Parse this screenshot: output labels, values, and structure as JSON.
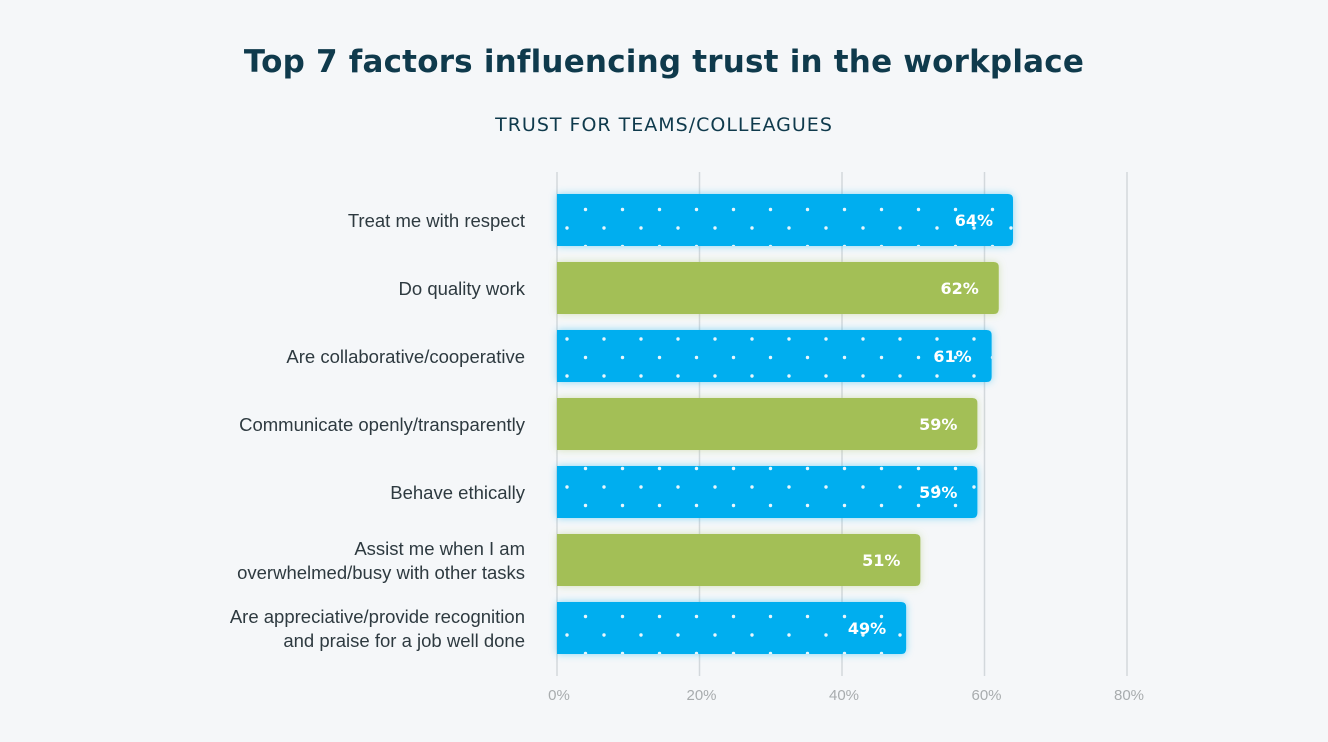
{
  "chart_data": {
    "type": "bar",
    "orientation": "horizontal",
    "title": "Top 7 factors influencing trust in the workplace",
    "subtitle": "TRUST FOR TEAMS/COLLEAGUES",
    "categories": [
      [
        "Treat me with respect"
      ],
      [
        "Do quality work"
      ],
      [
        "Are collaborative/cooperative"
      ],
      [
        "Communicate openly/transparently"
      ],
      [
        "Behave ethically"
      ],
      [
        "Assist me when I am",
        "overwhelmed/busy with other tasks"
      ],
      [
        "Are appreciative/provide recognition",
        "and praise for a job well done"
      ]
    ],
    "values": [
      64,
      62,
      61,
      59,
      59,
      51,
      49
    ],
    "data_labels": [
      "64%",
      "62%",
      "61%",
      "59%",
      "59%",
      "51%",
      "49%"
    ],
    "bar_styles": [
      "blue-dotted",
      "green",
      "blue-dotted",
      "green",
      "blue-dotted",
      "green",
      "blue-dotted"
    ],
    "colors": {
      "blue": "#00aeef",
      "green": "#a3bf57"
    },
    "xlim": [
      0,
      80
    ],
    "xticks": [
      0,
      20,
      40,
      60,
      80
    ],
    "xtick_labels": [
      "0%",
      "20%",
      "40%",
      "60%",
      "80%"
    ],
    "grid": "vertical"
  }
}
